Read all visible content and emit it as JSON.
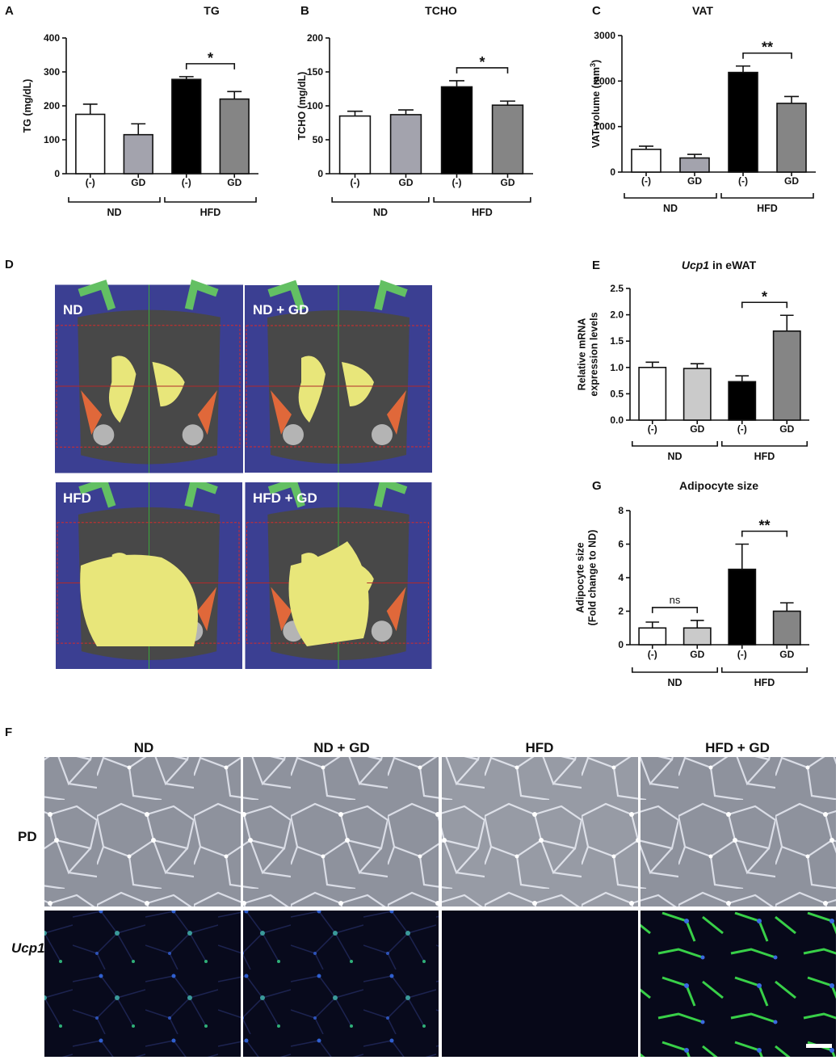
{
  "chart_data": [
    {
      "type": "bar",
      "panel": "A",
      "title": [
        "TG"
      ],
      "y_label": [
        [
          "TG (mg/dL)"
        ]
      ],
      "categories": [
        "(-)",
        "GD",
        "(-)",
        "GD"
      ],
      "groups": [
        "ND",
        "HFD"
      ],
      "values": [
        175,
        115,
        278,
        220
      ],
      "errors": [
        30,
        32,
        8,
        22
      ],
      "colors": [
        "#ffffff",
        "#a3a3ad",
        "#000000",
        "#858585"
      ],
      "ylim": [
        0,
        400
      ],
      "yticks": [
        0,
        100,
        200,
        300,
        400
      ],
      "annotations": [
        "*"
      ]
    },
    {
      "type": "bar",
      "panel": "B",
      "title": [
        "TCHO"
      ],
      "y_label": [
        [
          "TCHO (mg/dL)"
        ]
      ],
      "categories": [
        "(-)",
        "GD",
        "(-)",
        "GD"
      ],
      "groups": [
        "ND",
        "HFD"
      ],
      "values": [
        85,
        87,
        128,
        101
      ],
      "errors": [
        7,
        7,
        9,
        6
      ],
      "colors": [
        "#ffffff",
        "#a3a3ad",
        "#000000",
        "#858585"
      ],
      "ylim": [
        0,
        200
      ],
      "yticks": [
        0,
        50,
        100,
        150,
        200
      ],
      "annotations": [
        "*"
      ]
    },
    {
      "type": "bar",
      "panel": "C",
      "title": [
        "VAT"
      ],
      "y_label": [
        [
          "VAT volume (mm",
          {
            "sup": "3"
          },
          ")"
        ]
      ],
      "categories": [
        "(-)",
        "GD",
        "(-)",
        "GD"
      ],
      "groups": [
        "ND",
        "HFD"
      ],
      "values": [
        500,
        310,
        2190,
        1510
      ],
      "errors": [
        70,
        80,
        140,
        150
      ],
      "colors": [
        "#ffffff",
        "#a3a3ad",
        "#000000",
        "#858585"
      ],
      "ylim": [
        0,
        3000
      ],
      "yticks": [
        0,
        1000,
        2000,
        3000
      ],
      "annotations": [
        "**"
      ]
    },
    {
      "type": "bar",
      "panel": "E",
      "title": [
        {
          "italic": "Ucp1"
        },
        " in eWAT"
      ],
      "y_label": [
        [
          "Relative mRNA"
        ],
        [
          "expression levels"
        ]
      ],
      "categories": [
        "(-)",
        "GD",
        "(-)",
        "GD"
      ],
      "groups": [
        "ND",
        "HFD"
      ],
      "values": [
        1.0,
        0.98,
        0.73,
        1.69
      ],
      "errors": [
        0.1,
        0.09,
        0.11,
        0.3
      ],
      "colors": [
        "#ffffff",
        "#cacaca",
        "#000000",
        "#858585"
      ],
      "ylim": [
        0,
        2.5
      ],
      "yticks": [
        {
          "value": 0,
          "label": "0.0"
        },
        {
          "value": 0.5,
          "label": "0.5"
        },
        {
          "value": 1,
          "label": "1.0"
        },
        {
          "value": 1.5,
          "label": "1.5"
        },
        {
          "value": 2,
          "label": "2.0"
        },
        {
          "value": 2.5,
          "label": "2.5"
        }
      ],
      "annotations": [
        "*"
      ]
    },
    {
      "type": "bar",
      "panel": "G",
      "title": [
        "Adipocyte size"
      ],
      "y_label": [
        [
          "Adipocyte size"
        ],
        [
          "(Fold change to ND)"
        ]
      ],
      "categories": [
        "(-)",
        "GD",
        "(-)",
        "GD"
      ],
      "groups": [
        "ND",
        "HFD"
      ],
      "values": [
        1.0,
        1.0,
        4.5,
        2.0
      ],
      "errors": [
        0.35,
        0.45,
        1.5,
        0.5
      ],
      "colors": [
        "#ffffff",
        "#cacaca",
        "#000000",
        "#858585"
      ],
      "ylim": [
        0,
        8
      ],
      "yticks": [
        0,
        2,
        4,
        6,
        8
      ],
      "annotations": [
        "ns",
        "**"
      ]
    }
  ],
  "ct_panel": {
    "panel": "D",
    "labels": [
      "ND",
      "ND + GD",
      "HFD",
      "HFD + GD"
    ]
  },
  "histology_panel": {
    "panel": "F",
    "columns": [
      "ND",
      "ND + GD",
      "HFD",
      "HFD + GD"
    ],
    "rows": [
      "PD",
      "Ucp1"
    ]
  }
}
